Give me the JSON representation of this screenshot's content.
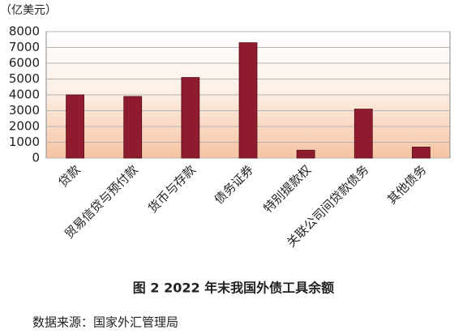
{
  "chart_data": {
    "type": "bar",
    "unit_label": "（亿美元）",
    "title": "图 2 2022 年末我国外债工具余额",
    "source": "数据来源：国家外汇管理局",
    "categories": [
      "贷款",
      "贸易信贷与预付款",
      "货币与存款",
      "债务证券",
      "特别提款权",
      "关联公司间贷款债务",
      "其他债务"
    ],
    "values": [
      4000,
      3900,
      5100,
      7300,
      500,
      3100,
      700
    ],
    "color": "#8e1b2e",
    "ylim": [
      0,
      8000
    ],
    "yticks": [
      0,
      1000,
      2000,
      3000,
      4000,
      5000,
      6000,
      7000,
      8000
    ],
    "grid": true
  }
}
